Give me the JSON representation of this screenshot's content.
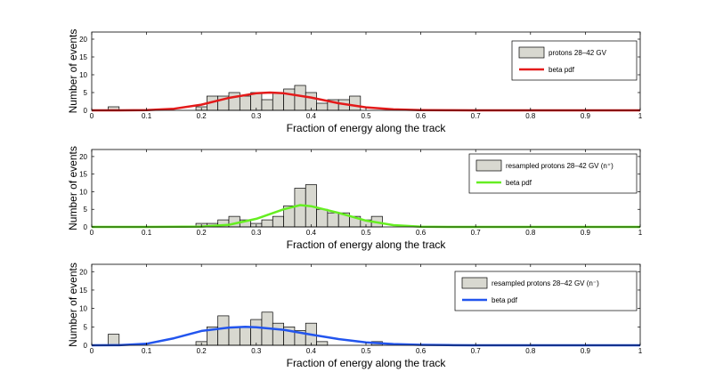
{
  "figure": {
    "xlabel": "Fraction of energy along the track",
    "ylabel": "Number of events"
  },
  "chart_data": [
    {
      "type": "bar",
      "title": "",
      "xlabel": "Fraction of energy along the track",
      "ylabel": "Number of events",
      "xlim": [
        0,
        1
      ],
      "ylim": [
        0,
        22
      ],
      "xticks": [
        "0",
        "0.1",
        "0.2",
        "0.3",
        "0.4",
        "0.5",
        "0.6",
        "0.7",
        "0.8",
        "0.9",
        "1"
      ],
      "yticks": [
        "0",
        "5",
        "10",
        "15",
        "20"
      ],
      "bin_width": 0.02,
      "histogram": {
        "name": "protons 28–42 GV",
        "bin_starts": [
          0.03,
          0.19,
          0.21,
          0.23,
          0.25,
          0.27,
          0.29,
          0.31,
          0.33,
          0.35,
          0.37,
          0.39,
          0.41,
          0.43,
          0.45,
          0.47
        ],
        "counts": [
          1,
          1,
          4,
          4,
          5,
          4,
          5,
          3,
          5,
          6,
          7,
          5,
          2,
          3,
          3,
          4
        ]
      },
      "curve": {
        "name": "beta pdf",
        "color": "#e41a1a",
        "x": [
          0,
          0.05,
          0.1,
          0.15,
          0.2,
          0.25,
          0.3,
          0.325,
          0.35,
          0.4,
          0.45,
          0.5,
          0.55,
          0.6,
          0.65,
          0.7,
          0.8,
          0.9,
          1
        ],
        "y": [
          0,
          0.01,
          0.08,
          0.45,
          1.6,
          3.5,
          4.8,
          5.0,
          4.8,
          3.6,
          2.0,
          0.85,
          0.28,
          0.07,
          0.015,
          0,
          0,
          0,
          0
        ]
      },
      "legend": {
        "position": "top-right",
        "entries": [
          "protons 28–42 GV",
          "beta pdf"
        ]
      },
      "hist_color": "#d8d8d0"
    },
    {
      "type": "bar",
      "title": "",
      "xlabel": "Fraction of energy along the track",
      "ylabel": "Number of events",
      "xlim": [
        0,
        1
      ],
      "ylim": [
        0,
        22
      ],
      "xticks": [
        "0",
        "0.1",
        "0.2",
        "0.3",
        "0.4",
        "0.5",
        "0.6",
        "0.7",
        "0.8",
        "0.9",
        "1"
      ],
      "yticks": [
        "0",
        "5",
        "10",
        "15",
        "20"
      ],
      "bin_width": 0.02,
      "histogram": {
        "name": "resampled protons 28–42 GV (n⁺)",
        "bin_starts": [
          0.19,
          0.21,
          0.23,
          0.25,
          0.27,
          0.29,
          0.31,
          0.33,
          0.35,
          0.37,
          0.39,
          0.41,
          0.43,
          0.45,
          0.47,
          0.49,
          0.51
        ],
        "counts": [
          1,
          1,
          2,
          3,
          2,
          1,
          2,
          3,
          6,
          11,
          12,
          5,
          4,
          4,
          3,
          2,
          3
        ]
      },
      "curve": {
        "name": "beta pdf",
        "color": "#66ee22",
        "x": [
          0,
          0.1,
          0.2,
          0.25,
          0.3,
          0.35,
          0.38,
          0.4,
          0.45,
          0.5,
          0.55,
          0.6,
          0.65,
          0.7,
          0.8,
          0.9,
          1
        ],
        "y": [
          0,
          0,
          0.1,
          0.6,
          2.3,
          5.0,
          6.2,
          5.9,
          4.0,
          1.8,
          0.5,
          0.08,
          0.01,
          0,
          0,
          0,
          0
        ]
      },
      "legend": {
        "position": "top-right",
        "entries": [
          "resampled protons 28–42 GV (n⁺)",
          "beta pdf"
        ]
      },
      "hist_color": "#d8d8d0"
    },
    {
      "type": "bar",
      "title": "",
      "xlabel": "Fraction of energy along the track",
      "ylabel": "Number of events",
      "xlim": [
        0,
        1
      ],
      "ylim": [
        0,
        22
      ],
      "xticks": [
        "0",
        "0.1",
        "0.2",
        "0.3",
        "0.4",
        "0.5",
        "0.6",
        "0.7",
        "0.8",
        "0.9",
        "1"
      ],
      "yticks": [
        "0",
        "5",
        "10",
        "15",
        "20"
      ],
      "bin_width": 0.02,
      "histogram": {
        "name": "resampled protons 28–42 GV (n⁻)",
        "bin_starts": [
          0.03,
          0.19,
          0.21,
          0.23,
          0.25,
          0.27,
          0.29,
          0.31,
          0.33,
          0.35,
          0.37,
          0.39,
          0.41,
          0.51
        ],
        "counts": [
          3,
          1,
          5,
          8,
          5,
          5,
          7,
          9,
          6,
          5,
          4,
          6,
          1,
          1
        ]
      },
      "curve": {
        "name": "beta pdf",
        "color": "#2255ee",
        "x": [
          0,
          0.05,
          0.1,
          0.15,
          0.2,
          0.25,
          0.28,
          0.3,
          0.35,
          0.4,
          0.45,
          0.5,
          0.55,
          0.6,
          0.65,
          0.7,
          0.8,
          0.9,
          1
        ],
        "y": [
          0,
          0.02,
          0.4,
          1.9,
          3.9,
          4.8,
          5.0,
          4.9,
          4.2,
          2.9,
          1.7,
          0.8,
          0.35,
          0.12,
          0.04,
          0.01,
          0,
          0,
          0
        ]
      },
      "legend": {
        "position": "top-right",
        "entries": [
          "resampled protons 28–42 GV (n⁻)",
          "beta pdf"
        ]
      },
      "hist_color": "#d8d8d0"
    }
  ]
}
